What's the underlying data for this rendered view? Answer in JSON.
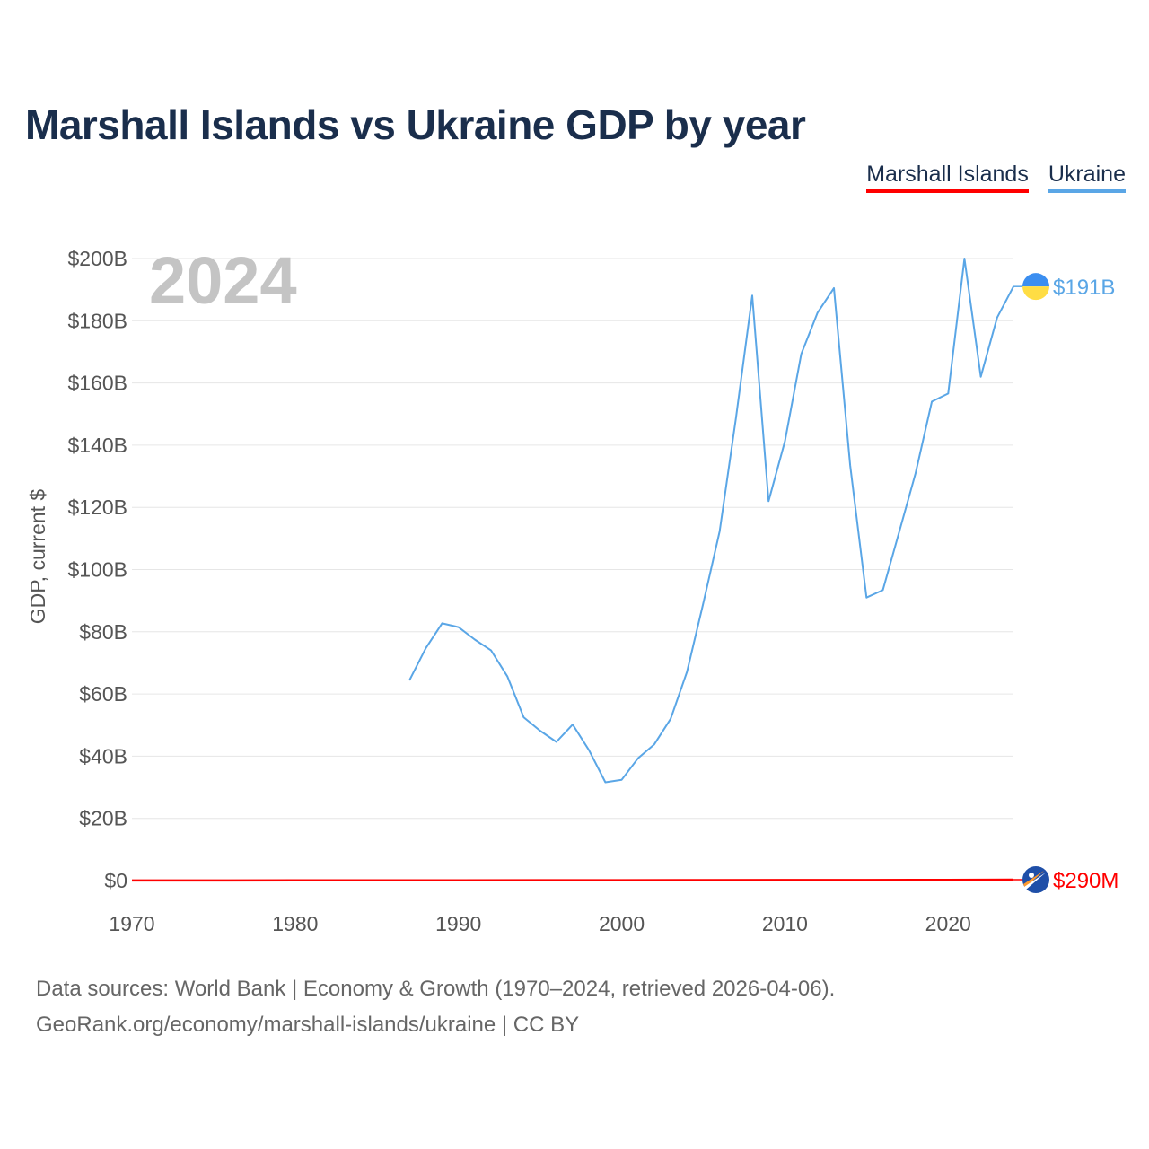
{
  "chart_data": {
    "type": "line",
    "title": "Marshall Islands vs Ukraine GDP by year",
    "ylabel": "GDP, current $",
    "xlabel": "",
    "current_year_label": "2024",
    "xlim": [
      1970,
      2024
    ],
    "ylim": [
      0,
      200
    ],
    "y_unit": "billions USD",
    "x_ticks": [
      {
        "value": 1970,
        "label": "1970"
      },
      {
        "value": 1980,
        "label": "1980"
      },
      {
        "value": 1990,
        "label": "1990"
      },
      {
        "value": 2000,
        "label": "2000"
      },
      {
        "value": 2010,
        "label": "2010"
      },
      {
        "value": 2020,
        "label": "2020"
      }
    ],
    "y_ticks": [
      {
        "value": 0,
        "label": "$0"
      },
      {
        "value": 20,
        "label": "$20B"
      },
      {
        "value": 40,
        "label": "$40B"
      },
      {
        "value": 60,
        "label": "$60B"
      },
      {
        "value": 80,
        "label": "$80B"
      },
      {
        "value": 100,
        "label": "$100B"
      },
      {
        "value": 120,
        "label": "$120B"
      },
      {
        "value": 140,
        "label": "$140B"
      },
      {
        "value": 160,
        "label": "$160B"
      },
      {
        "value": 180,
        "label": "$180B"
      },
      {
        "value": 200,
        "label": "$200B"
      }
    ],
    "series": [
      {
        "name": "Marshall Islands",
        "color": "#ff0000",
        "end_label": "$290M",
        "flag": "marshall-islands-flag",
        "x": [
          1970,
          1975,
          1980,
          1985,
          1990,
          1995,
          2000,
          2005,
          2010,
          2015,
          2020,
          2024
        ],
        "values": [
          0.03,
          0.04,
          0.05,
          0.07,
          0.09,
          0.12,
          0.11,
          0.14,
          0.17,
          0.18,
          0.24,
          0.29
        ]
      },
      {
        "name": "Ukraine",
        "color": "#5aa6e6",
        "end_label": "$191B",
        "flag": "ukraine-flag",
        "x": [
          1987,
          1988,
          1989,
          1990,
          1991,
          1992,
          1993,
          1994,
          1995,
          1996,
          1997,
          1998,
          1999,
          2000,
          2001,
          2002,
          2003,
          2004,
          2005,
          2006,
          2007,
          2008,
          2009,
          2010,
          2011,
          2012,
          2013,
          2014,
          2015,
          2016,
          2017,
          2018,
          2019,
          2020,
          2021,
          2022,
          2023,
          2024
        ],
        "values": [
          64.4,
          74.7,
          82.7,
          81.5,
          77.5,
          74.0,
          65.6,
          52.5,
          48.2,
          44.6,
          50.2,
          41.9,
          31.6,
          32.4,
          39.3,
          43.8,
          52.0,
          67.1,
          89.2,
          112.3,
          148.8,
          188.1,
          122.0,
          141.2,
          169.3,
          182.6,
          190.5,
          133.5,
          91.0,
          93.4,
          112.1,
          130.9,
          154.0,
          156.6,
          200.0,
          162.0,
          181.0,
          191.0
        ]
      }
    ]
  },
  "footer": {
    "line1": "Data sources: World Bank | Economy & Growth (1970–2024, retrieved 2026-04-06).",
    "line2": "GeoRank.org/economy/marshall-islands/ukraine | CC BY"
  }
}
